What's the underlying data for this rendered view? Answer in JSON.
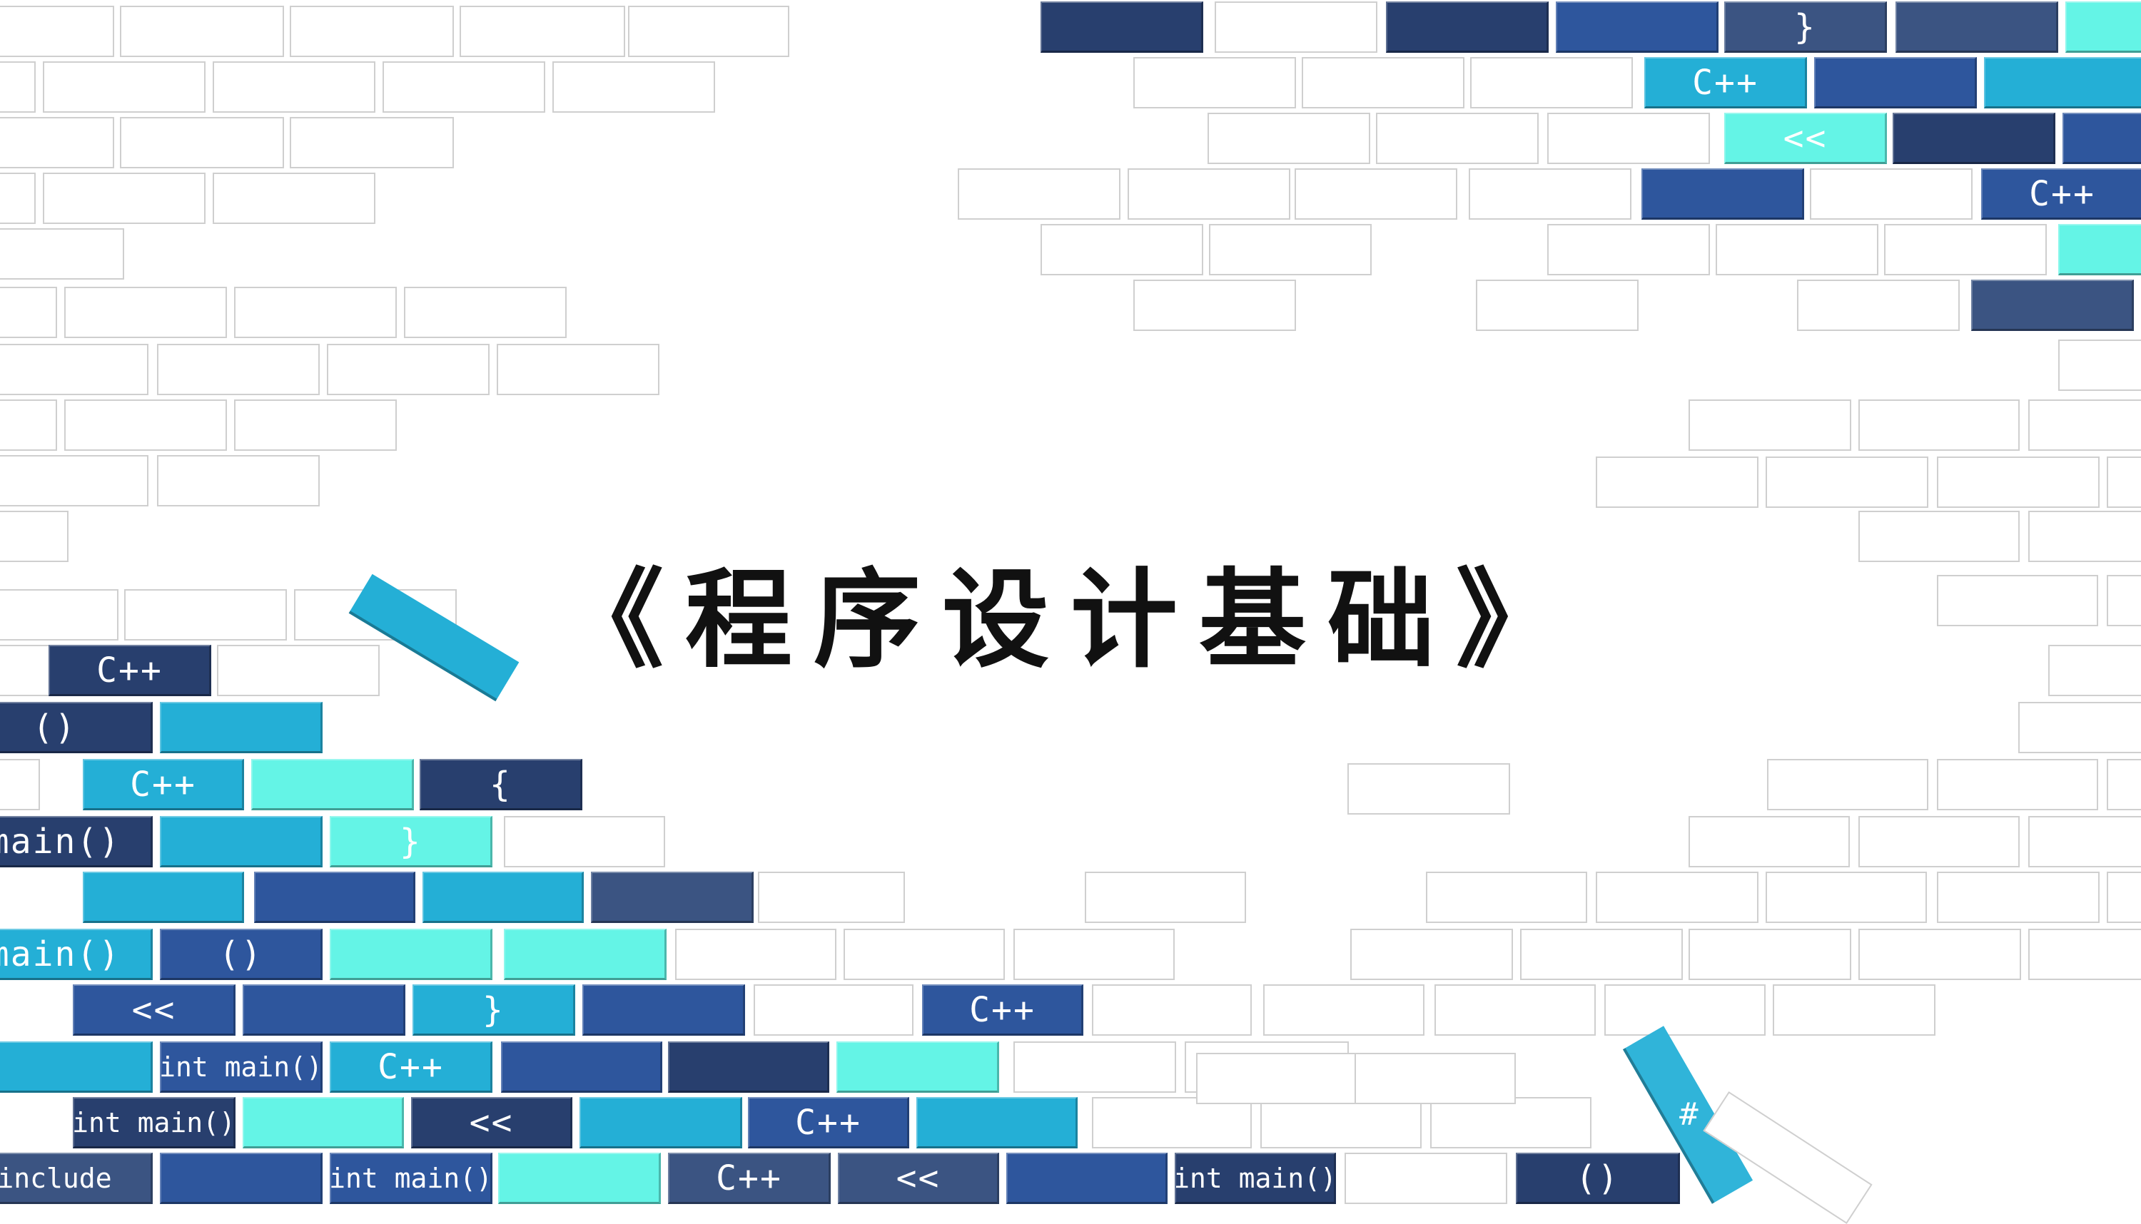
{
  "slide": {
    "title": "《程序设计基础》"
  },
  "colors": {
    "navy": "#283f6e",
    "royal": "#2e569d",
    "slate": "#3b5482",
    "cyan": "#24afd6",
    "mint": "#64f4e6",
    "outline": "#cfcfcf"
  },
  "brick_labels": {
    "cpp": "C++",
    "shift": "<<",
    "parens": "()",
    "open_brace": "{",
    "close_brace": "}",
    "main": "main()",
    "int_main": "int main()",
    "include": "include",
    "hash": "#"
  }
}
